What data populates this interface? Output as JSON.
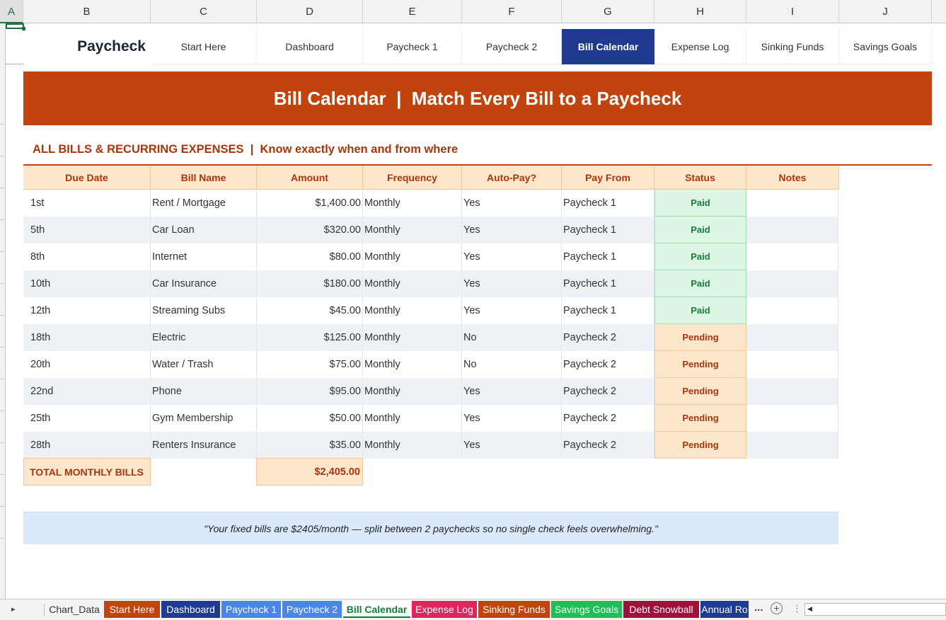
{
  "columns": [
    "A",
    "B",
    "C",
    "D",
    "E",
    "F",
    "G",
    "H",
    "I",
    "J"
  ],
  "nav": {
    "brand": "Paycheck Budget",
    "items": [
      "Start Here",
      "Dashboard",
      "Paycheck 1",
      "Paycheck 2",
      "Bill Calendar",
      "Expense Log",
      "Sinking Funds",
      "Savings Goals"
    ],
    "active": "Bill Calendar",
    "active_color": "#1f3b8f"
  },
  "banner": {
    "title": "Bill Calendar  |  Match Every Bill to a Paycheck",
    "color": "#c1440e"
  },
  "section": {
    "title": "ALL BILLS & RECURRING EXPENSES  |  Know exactly when and from where"
  },
  "table": {
    "headers": [
      "Due Date",
      "Bill Name",
      "Amount",
      "Frequency",
      "Auto-Pay?",
      "Pay From",
      "Status",
      "Notes"
    ],
    "rows": [
      {
        "due": "1st",
        "name": "Rent / Mortgage",
        "amount": "$1,400.00",
        "freq": "Monthly",
        "autopay": "Yes",
        "from": "Paycheck 1",
        "status": "Paid",
        "notes": ""
      },
      {
        "due": "5th",
        "name": "Car Loan",
        "amount": "$320.00",
        "freq": "Monthly",
        "autopay": "Yes",
        "from": "Paycheck 1",
        "status": "Paid",
        "notes": ""
      },
      {
        "due": "8th",
        "name": "Internet",
        "amount": "$80.00",
        "freq": "Monthly",
        "autopay": "Yes",
        "from": "Paycheck 1",
        "status": "Paid",
        "notes": ""
      },
      {
        "due": "10th",
        "name": "Car Insurance",
        "amount": "$180.00",
        "freq": "Monthly",
        "autopay": "Yes",
        "from": "Paycheck 1",
        "status": "Paid",
        "notes": ""
      },
      {
        "due": "12th",
        "name": "Streaming Subs",
        "amount": "$45.00",
        "freq": "Monthly",
        "autopay": "Yes",
        "from": "Paycheck 1",
        "status": "Paid",
        "notes": ""
      },
      {
        "due": "18th",
        "name": "Electric",
        "amount": "$125.00",
        "freq": "Monthly",
        "autopay": "No",
        "from": "Paycheck 2",
        "status": "Pending",
        "notes": ""
      },
      {
        "due": "20th",
        "name": "Water / Trash",
        "amount": "$75.00",
        "freq": "Monthly",
        "autopay": "No",
        "from": "Paycheck 2",
        "status": "Pending",
        "notes": ""
      },
      {
        "due": "22nd",
        "name": "Phone",
        "amount": "$95.00",
        "freq": "Monthly",
        "autopay": "Yes",
        "from": "Paycheck 2",
        "status": "Pending",
        "notes": ""
      },
      {
        "due": "25th",
        "name": "Gym Membership",
        "amount": "$50.00",
        "freq": "Monthly",
        "autopay": "Yes",
        "from": "Paycheck 2",
        "status": "Pending",
        "notes": ""
      },
      {
        "due": "28th",
        "name": "Renters Insurance",
        "amount": "$35.00",
        "freq": "Monthly",
        "autopay": "Yes",
        "from": "Paycheck 2",
        "status": "Pending",
        "notes": ""
      }
    ],
    "total_label": "TOTAL MONTHLY BILLS",
    "total_value": "$2,405.00"
  },
  "quote": "\"Your fixed bills are $2405/month — split between 2 paychecks so no single check feels overwhelming.\"",
  "sheet_tabs": [
    {
      "label": "Chart_Data",
      "color": ""
    },
    {
      "label": "Start Here",
      "color": "#c1440e"
    },
    {
      "label": "Dashboard",
      "color": "#1f3b8f"
    },
    {
      "label": "Paycheck 1",
      "color": "#4a86e8"
    },
    {
      "label": "Paycheck 2",
      "color": "#4a86e8"
    },
    {
      "label": "Bill Calendar",
      "color": "#ffffff"
    },
    {
      "label": "Expense Log",
      "color": "#e0245e"
    },
    {
      "label": "Sinking Funds",
      "color": "#c1440e"
    },
    {
      "label": "Savings Goals",
      "color": "#1fbf55"
    },
    {
      "label": "Debt Snowball",
      "color": "#a0103a"
    },
    {
      "label": "Annual Ro",
      "color": "#1f3b8f"
    }
  ],
  "tabs_more": "...",
  "colors": {
    "paid_bg": "#dcf7e3",
    "paid_text": "#197b3b",
    "pending_bg": "#fde7cc",
    "pending_text": "#a8360d"
  }
}
